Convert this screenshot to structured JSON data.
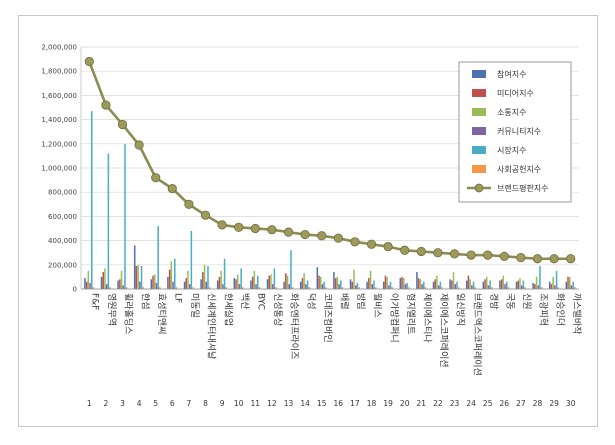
{
  "chart_data": {
    "type": "bar",
    "categories": [
      "F&F",
      "영원무역",
      "휠라홀딩스",
      "한섬",
      "효성티앤씨",
      "LF",
      "미동일",
      "신세계인터내셔날",
      "한세실업",
      "백산",
      "BYC",
      "신성통상",
      "화승엔터프라이즈",
      "덕성",
      "코데즈컴바인",
      "배럴",
      "방림",
      "월비스",
      "아가방컴퍼니",
      "형지엘리트",
      "제이에스티나",
      "제이에스코퍼레이션",
      "일신방직",
      "브랜드엑스코퍼레이션",
      "경방",
      "국동",
      "신원",
      "조광피혁",
      "화승인더",
      "까스텔바작"
    ],
    "index_labels": [
      "1",
      "2",
      "3",
      "4",
      "5",
      "6",
      "7",
      "8",
      "9",
      "10",
      "11",
      "12",
      "13",
      "14",
      "15",
      "16",
      "17",
      "18",
      "19",
      "20",
      "21",
      "22",
      "23",
      "24",
      "25",
      "26",
      "27",
      "28",
      "29",
      "30"
    ],
    "y_ticks": [
      "0",
      "200,000",
      "400,000",
      "600,000",
      "800,000",
      "1,000,000",
      "1,200,000",
      "1,400,000",
      "1,600,000",
      "1,800,000",
      "2,000,000"
    ],
    "ylim": [
      0,
      2000000
    ],
    "series": [
      {
        "name": "참여지수",
        "color": "#4e72b0",
        "values": [
          90000,
          100000,
          70000,
          360000,
          80000,
          100000,
          60000,
          80000,
          70000,
          90000,
          70000,
          80000,
          60000,
          60000,
          180000,
          140000,
          80000,
          60000,
          60000,
          90000,
          140000,
          60000,
          80000,
          70000,
          60000,
          70000,
          60000,
          50000,
          60000,
          60000
        ]
      },
      {
        "name": "미디어지수",
        "color": "#c0504d",
        "values": [
          60000,
          140000,
          80000,
          190000,
          110000,
          160000,
          90000,
          140000,
          100000,
          80000,
          100000,
          110000,
          130000,
          90000,
          110000,
          90000,
          60000,
          90000,
          110000,
          100000,
          90000,
          80000,
          70000,
          110000,
          80000,
          80000,
          70000,
          40000,
          40000,
          100000
        ]
      },
      {
        "name": "소통지수",
        "color": "#9bbb59",
        "values": [
          150000,
          170000,
          150000,
          200000,
          120000,
          230000,
          150000,
          200000,
          150000,
          120000,
          150000,
          120000,
          110000,
          130000,
          100000,
          100000,
          160000,
          150000,
          100000,
          90000,
          80000,
          110000,
          140000,
          80000,
          100000,
          110000,
          90000,
          100000,
          100000,
          100000
        ]
      },
      {
        "name": "커뮤니티지수",
        "color": "#8064a2",
        "values": [
          50000,
          40000,
          30000,
          60000,
          50000,
          60000,
          40000,
          60000,
          40000,
          40000,
          40000,
          40000,
          40000,
          40000,
          40000,
          40000,
          30000,
          40000,
          30000,
          40000,
          40000,
          30000,
          40000,
          30000,
          30000,
          40000,
          30000,
          30000,
          30000,
          30000
        ]
      },
      {
        "name": "시장지수",
        "color": "#4bacc6",
        "values": [
          1470000,
          1120000,
          1200000,
          190000,
          520000,
          250000,
          480000,
          190000,
          250000,
          170000,
          110000,
          170000,
          320000,
          70000,
          60000,
          70000,
          50000,
          70000,
          60000,
          50000,
          60000,
          60000,
          60000,
          60000,
          70000,
          60000,
          70000,
          190000,
          150000,
          60000
        ]
      },
      {
        "name": "사회공헌지수",
        "color": "#f79646",
        "values": [
          15000,
          15000,
          15000,
          15000,
          15000,
          15000,
          15000,
          15000,
          15000,
          15000,
          15000,
          15000,
          15000,
          15000,
          15000,
          15000,
          15000,
          15000,
          15000,
          15000,
          15000,
          15000,
          15000,
          15000,
          15000,
          15000,
          15000,
          15000,
          15000,
          15000
        ]
      },
      {
        "name": "브랜드평판지수",
        "color": "#8c8b52",
        "type": "line",
        "values": [
          1880000,
          1520000,
          1360000,
          1190000,
          920000,
          830000,
          700000,
          610000,
          530000,
          510000,
          500000,
          490000,
          470000,
          450000,
          440000,
          420000,
          390000,
          370000,
          350000,
          320000,
          310000,
          300000,
          290000,
          280000,
          280000,
          270000,
          260000,
          250000,
          250000,
          250000
        ]
      }
    ],
    "legend_position": "right"
  }
}
